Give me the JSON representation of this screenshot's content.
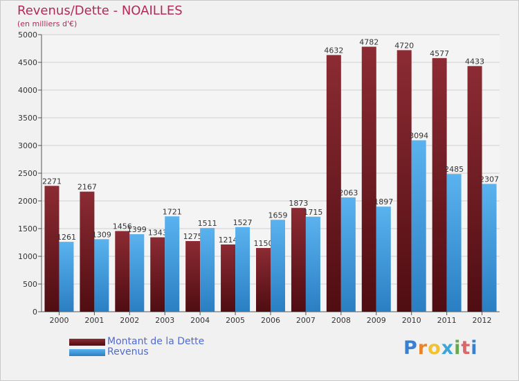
{
  "header": {
    "title": "Revenus/Dette - NOAILLES",
    "subtitle": "(en milliers d'€)"
  },
  "brand": {
    "text": "Proxiti",
    "letter_colors": [
      "#3a7fd0",
      "#e8842a",
      "#f1c232",
      "#3aa7d8",
      "#6aa84f",
      "#e06666",
      "#3a7fd0"
    ]
  },
  "colors": {
    "dette": "#7a1f26",
    "revenus": "#4aa3e6",
    "grid": "#d0d0d0",
    "axis": "#555555",
    "background": "#f1f1f1"
  },
  "chart_data": {
    "type": "bar",
    "categories": [
      "2000",
      "2001",
      "2002",
      "2003",
      "2004",
      "2005",
      "2006",
      "2007",
      "2008",
      "2009",
      "2010",
      "2011",
      "2012"
    ],
    "series": [
      {
        "name": "Montant de la Dette",
        "values": [
          2271,
          2167,
          1456,
          1343,
          1275,
          1214,
          1150,
          1873,
          4632,
          4782,
          4720,
          4577,
          4433
        ]
      },
      {
        "name": "Revenus",
        "values": [
          1261,
          1309,
          1399,
          1721,
          1511,
          1527,
          1659,
          1715,
          2063,
          1897,
          3094,
          2485,
          2307
        ]
      }
    ],
    "ylim": [
      0,
      5000
    ],
    "yticks": [
      0,
      500,
      1000,
      1500,
      2000,
      2500,
      3000,
      3500,
      4000,
      4500,
      5000
    ],
    "grid": true,
    "legend_position": "bottom-left"
  }
}
